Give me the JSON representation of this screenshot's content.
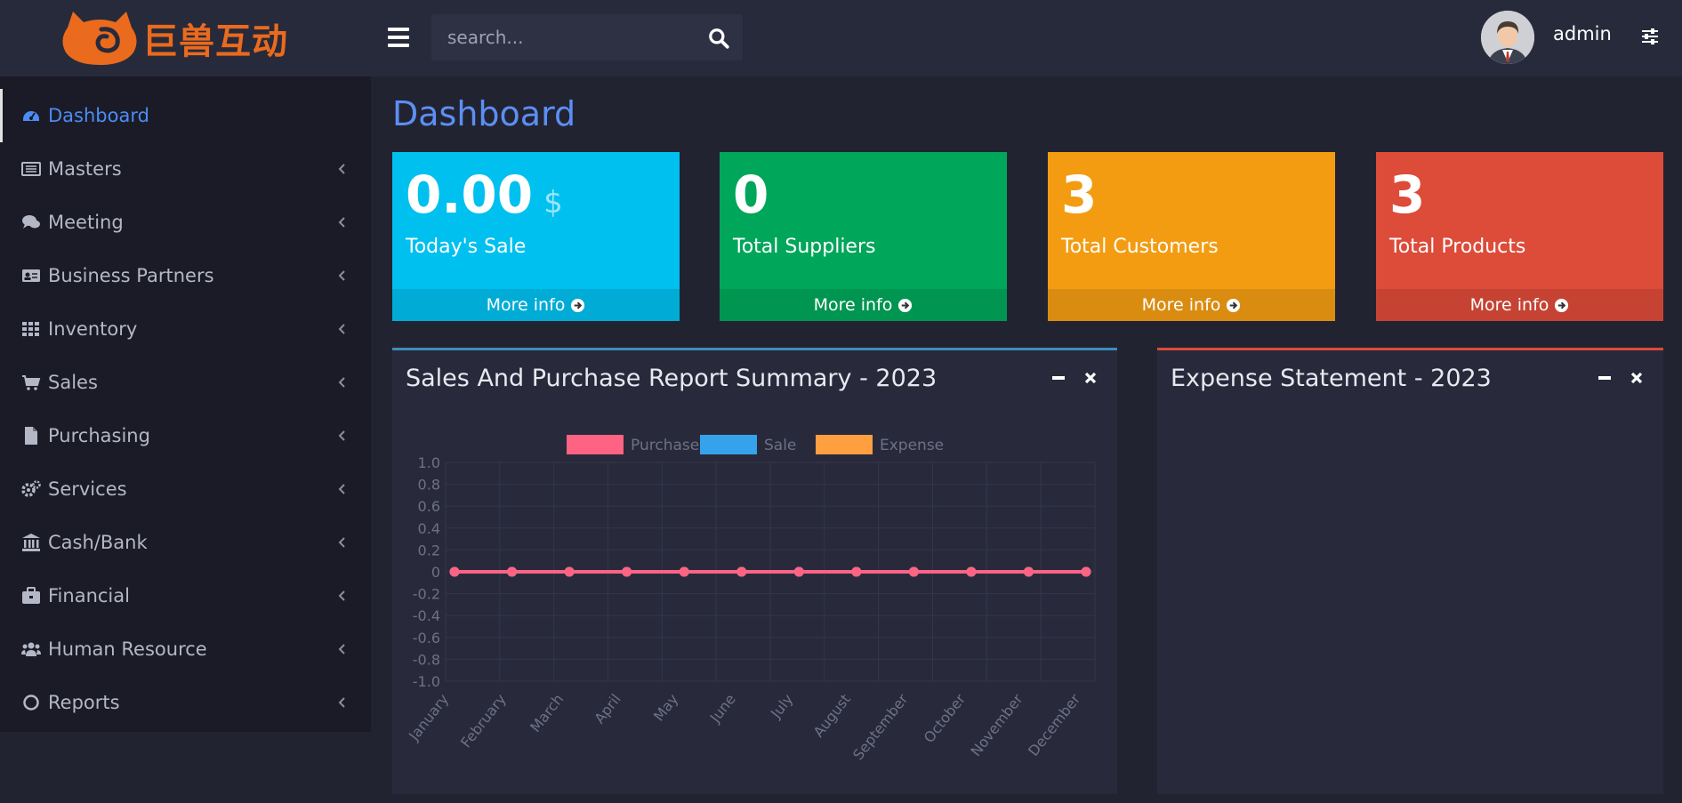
{
  "header": {
    "brand_text": "巨兽互动",
    "search_placeholder": "search...",
    "username": "admin"
  },
  "sidebar": {
    "items": [
      {
        "label": "Dashboard",
        "icon": "dashboard-icon",
        "active": true
      },
      {
        "label": "Masters",
        "icon": "list-icon"
      },
      {
        "label": "Meeting",
        "icon": "comments-icon"
      },
      {
        "label": "Business Partners",
        "icon": "id-card-icon"
      },
      {
        "label": "Inventory",
        "icon": "grid-icon"
      },
      {
        "label": "Sales",
        "icon": "cart-icon"
      },
      {
        "label": "Purchasing",
        "icon": "file-icon"
      },
      {
        "label": "Services",
        "icon": "gears-icon"
      },
      {
        "label": "Cash/Bank",
        "icon": "bank-icon"
      },
      {
        "label": "Financial",
        "icon": "briefcase-icon"
      },
      {
        "label": "Human Resource",
        "icon": "users-icon"
      },
      {
        "label": "Reports",
        "icon": "circle-icon"
      }
    ]
  },
  "main": {
    "title": "Dashboard",
    "stats": [
      {
        "value": "0.00",
        "unit": "$",
        "label": "Today's Sale",
        "more": "More info",
        "color": "#00c0ef"
      },
      {
        "value": "0",
        "unit": "",
        "label": "Total Suppliers",
        "more": "More info",
        "color": "#00a65a"
      },
      {
        "value": "3",
        "unit": "",
        "label": "Total Customers",
        "more": "More info",
        "color": "#f39c12"
      },
      {
        "value": "3",
        "unit": "",
        "label": "Total Products",
        "more": "More info",
        "color": "#dd4b39"
      }
    ],
    "panels": [
      {
        "title": "Sales And Purchase Report Summary - 2023",
        "accent": "#3c8dbc"
      },
      {
        "title": "Expense Statement - 2023",
        "accent": "#dd4b39"
      }
    ]
  },
  "chart_data": {
    "type": "line",
    "categories": [
      "January",
      "February",
      "March",
      "April",
      "May",
      "June",
      "July",
      "August",
      "September",
      "October",
      "November",
      "December"
    ],
    "series": [
      {
        "name": "Purchase",
        "color": "#ff6384",
        "values": [
          0,
          0,
          0,
          0,
          0,
          0,
          0,
          0,
          0,
          0,
          0,
          0
        ]
      },
      {
        "name": "Sale",
        "color": "#36a2eb",
        "values": [
          0,
          0,
          0,
          0,
          0,
          0,
          0,
          0,
          0,
          0,
          0,
          0
        ]
      },
      {
        "name": "Expense",
        "color": "#ff9f40",
        "values": [
          0,
          0,
          0,
          0,
          0,
          0,
          0,
          0,
          0,
          0,
          0,
          0
        ]
      }
    ],
    "y_ticks": [
      "1.0",
      "0.8",
      "0.6",
      "0.4",
      "0.2",
      "0",
      "-0.2",
      "-0.4",
      "-0.6",
      "-0.8",
      "-1.0"
    ],
    "ylim": [
      -1,
      1
    ],
    "grid": true,
    "legend": "top"
  }
}
